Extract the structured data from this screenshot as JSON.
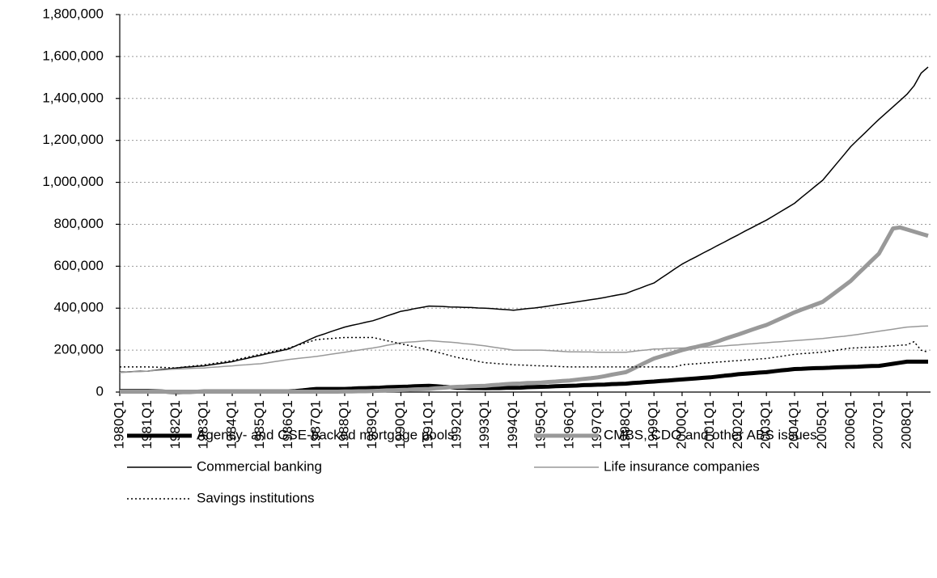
{
  "chart_data": {
    "type": "line",
    "categories": [
      "1980Q1",
      null,
      null,
      null,
      "1981Q1",
      null,
      null,
      null,
      "1982Q1",
      null,
      null,
      null,
      "1983Q1",
      null,
      null,
      null,
      "1984Q1",
      null,
      null,
      null,
      "1985Q1",
      null,
      null,
      null,
      "1986Q1",
      null,
      null,
      null,
      "1987Q1",
      null,
      null,
      null,
      "1988Q1",
      null,
      null,
      null,
      "1989Q1",
      null,
      null,
      null,
      "1990Q1",
      null,
      null,
      null,
      "1991Q1",
      null,
      null,
      null,
      "1992Q1",
      null,
      null,
      null,
      "1993Q1",
      null,
      null,
      null,
      "1994Q1",
      null,
      null,
      null,
      "1995Q1",
      null,
      null,
      null,
      "1996Q1",
      null,
      null,
      null,
      "1997Q1",
      null,
      null,
      null,
      "1998Q1",
      null,
      null,
      null,
      "1999Q1",
      null,
      null,
      null,
      "2000Q1",
      null,
      null,
      null,
      "2001Q1",
      null,
      null,
      null,
      "2002Q1",
      null,
      null,
      null,
      "2003Q1",
      null,
      null,
      null,
      "2004Q1",
      null,
      null,
      null,
      "2005Q1",
      null,
      null,
      null,
      "2006Q1",
      null,
      null,
      null,
      "2007Q1",
      null,
      null,
      null,
      "2008Q1",
      null,
      null,
      null
    ],
    "series": [
      {
        "name": "Agency- and GSE-backed mortgage pools",
        "color": "#000000",
        "values": [
          5000,
          5000,
          5000,
          5000,
          5000,
          4000,
          3000,
          1000,
          0,
          1000,
          1000,
          2000,
          3000,
          3000,
          3000,
          3000,
          3000,
          3000,
          3000,
          3000,
          3000,
          3000,
          3000,
          3000,
          3000,
          5000,
          8000,
          12000,
          15000,
          15000,
          15000,
          15000,
          15000,
          16000,
          18000,
          19000,
          20000,
          21000,
          23000,
          24000,
          25000,
          26000,
          28000,
          29000,
          30000,
          28000,
          25000,
          23000,
          20000,
          20000,
          19000,
          19000,
          18000,
          19000,
          19000,
          20000,
          20000,
          21000,
          23000,
          24000,
          25000,
          26000,
          28000,
          29000,
          30000,
          31000,
          33000,
          34000,
          35000,
          36000,
          38000,
          39000,
          40000,
          43000,
          45000,
          48000,
          50000,
          53000,
          55000,
          58000,
          60000,
          63000,
          65000,
          68000,
          70000,
          74000,
          78000,
          81000,
          85000,
          88000,
          90000,
          93000,
          95000,
          99000,
          103000,
          106000,
          110000,
          111000,
          113000,
          114000,
          115000,
          116000,
          118000,
          119000,
          120000,
          121000,
          123000,
          124000,
          125000,
          130000,
          135000,
          140000,
          145000,
          145000,
          145000,
          145000
        ]
      },
      {
        "name": "CMBS, CDO and other ABS issues",
        "color": "#999999",
        "values": [
          2000,
          2000,
          2000,
          2000,
          2000,
          2000,
          2000,
          2000,
          2000,
          2000,
          2000,
          2000,
          2000,
          2000,
          2000,
          2000,
          2000,
          2000,
          2000,
          2000,
          2000,
          2000,
          2000,
          2000,
          2000,
          2000,
          2000,
          2000,
          2000,
          2000,
          2000,
          2000,
          3000,
          3000,
          4000,
          4000,
          5000,
          6000,
          8000,
          9000,
          10000,
          11000,
          13000,
          14000,
          15000,
          18000,
          20000,
          23000,
          25000,
          26000,
          28000,
          29000,
          30000,
          33000,
          35000,
          38000,
          40000,
          41000,
          43000,
          44000,
          45000,
          48000,
          50000,
          53000,
          55000,
          59000,
          63000,
          66000,
          70000,
          76000,
          83000,
          89000,
          95000,
          111000,
          128000,
          144000,
          160000,
          170000,
          180000,
          190000,
          200000,
          208000,
          215000,
          223000,
          230000,
          241000,
          253000,
          264000,
          275000,
          286000,
          298000,
          309000,
          320000,
          335000,
          350000,
          365000,
          380000,
          393000,
          405000,
          418000,
          430000,
          455000,
          480000,
          505000,
          530000,
          563000,
          595000,
          628000,
          660000,
          720000,
          780000,
          785000,
          775000,
          765000,
          755000,
          745000
        ]
      },
      {
        "name": "Commercial banking",
        "color": "#000000",
        "values": [
          95000,
          96000,
          98000,
          99000,
          100000,
          104000,
          108000,
          111000,
          115000,
          118000,
          120000,
          123000,
          125000,
          130000,
          135000,
          140000,
          145000,
          153000,
          160000,
          168000,
          175000,
          183000,
          190000,
          198000,
          205000,
          220000,
          235000,
          250000,
          265000,
          276000,
          288000,
          299000,
          310000,
          318000,
          325000,
          333000,
          340000,
          351000,
          363000,
          374000,
          385000,
          391000,
          398000,
          404000,
          410000,
          409000,
          408000,
          406000,
          405000,
          404000,
          403000,
          401000,
          400000,
          398000,
          395000,
          393000,
          390000,
          394000,
          398000,
          401000,
          405000,
          410000,
          415000,
          420000,
          425000,
          430000,
          435000,
          440000,
          445000,
          451000,
          458000,
          464000,
          470000,
          483000,
          495000,
          508000,
          520000,
          543000,
          565000,
          588000,
          610000,
          628000,
          645000,
          663000,
          680000,
          698000,
          715000,
          733000,
          750000,
          768000,
          785000,
          803000,
          820000,
          840000,
          860000,
          880000,
          900000,
          928000,
          955000,
          983000,
          1010000,
          1050000,
          1090000,
          1130000,
          1170000,
          1203000,
          1235000,
          1268000,
          1300000,
          1330000,
          1360000,
          1390000,
          1420000,
          1460000,
          1520000,
          1550000
        ]
      },
      {
        "name": "Life insurance companies",
        "color": "#999999",
        "values": [
          93000,
          95000,
          97000,
          98000,
          100000,
          103000,
          105000,
          108000,
          110000,
          111000,
          113000,
          114000,
          115000,
          118000,
          120000,
          123000,
          125000,
          128000,
          130000,
          133000,
          135000,
          140000,
          145000,
          150000,
          155000,
          159000,
          163000,
          166000,
          170000,
          175000,
          180000,
          185000,
          190000,
          195000,
          200000,
          205000,
          210000,
          216000,
          223000,
          229000,
          235000,
          238000,
          240000,
          243000,
          245000,
          243000,
          240000,
          238000,
          235000,
          231000,
          228000,
          224000,
          220000,
          215000,
          210000,
          205000,
          200000,
          200000,
          200000,
          200000,
          200000,
          198000,
          196000,
          194000,
          192000,
          192000,
          191000,
          191000,
          190000,
          190000,
          190000,
          190000,
          190000,
          194000,
          198000,
          201000,
          205000,
          206000,
          208000,
          209000,
          210000,
          211000,
          213000,
          214000,
          215000,
          218000,
          220000,
          223000,
          225000,
          228000,
          230000,
          233000,
          235000,
          238000,
          240000,
          243000,
          245000,
          248000,
          250000,
          253000,
          255000,
          259000,
          263000,
          266000,
          270000,
          275000,
          280000,
          285000,
          290000,
          295000,
          300000,
          305000,
          310000,
          312000,
          314000,
          315000
        ]
      },
      {
        "name": "Savings institutions",
        "color": "#000000",
        "dashed": true,
        "values": [
          120000,
          120000,
          120000,
          120000,
          120000,
          119000,
          118000,
          116000,
          115000,
          119000,
          123000,
          126000,
          130000,
          135000,
          140000,
          145000,
          150000,
          158000,
          165000,
          173000,
          180000,
          188000,
          195000,
          203000,
          210000,
          220000,
          230000,
          240000,
          250000,
          253000,
          255000,
          258000,
          260000,
          260000,
          260000,
          260000,
          260000,
          253000,
          245000,
          238000,
          230000,
          223000,
          215000,
          208000,
          200000,
          191000,
          183000,
          174000,
          165000,
          159000,
          153000,
          146000,
          140000,
          138000,
          135000,
          133000,
          130000,
          129000,
          128000,
          126000,
          125000,
          124000,
          123000,
          121000,
          120000,
          120000,
          120000,
          120000,
          120000,
          120000,
          120000,
          120000,
          120000,
          120000,
          120000,
          120000,
          120000,
          120000,
          120000,
          120000,
          130000,
          133000,
          135000,
          138000,
          140000,
          143000,
          145000,
          148000,
          150000,
          153000,
          155000,
          158000,
          160000,
          165000,
          170000,
          175000,
          180000,
          183000,
          185000,
          188000,
          190000,
          195000,
          200000,
          205000,
          210000,
          211000,
          213000,
          214000,
          215000,
          218000,
          220000,
          223000,
          225000,
          240000,
          200000,
          190000
        ]
      }
    ],
    "ylim": [
      0,
      1800000
    ],
    "yticks": [
      0,
      {
        "value": 200000,
        "label": "200,000"
      },
      {
        "value": 400000,
        "label": "400,000"
      },
      {
        "value": 600000,
        "label": "600,000"
      },
      {
        "value": 800000,
        "label": "800,000"
      },
      {
        "value": 1000000,
        "label": "1,000,000"
      },
      {
        "value": 1200000,
        "label": "1,200,000"
      },
      {
        "value": 1400000,
        "label": "1,400,000"
      },
      {
        "value": 1600000,
        "label": "1,600,000"
      },
      {
        "value": 1800000,
        "label": "1,800,000"
      }
    ],
    "grid": true
  }
}
